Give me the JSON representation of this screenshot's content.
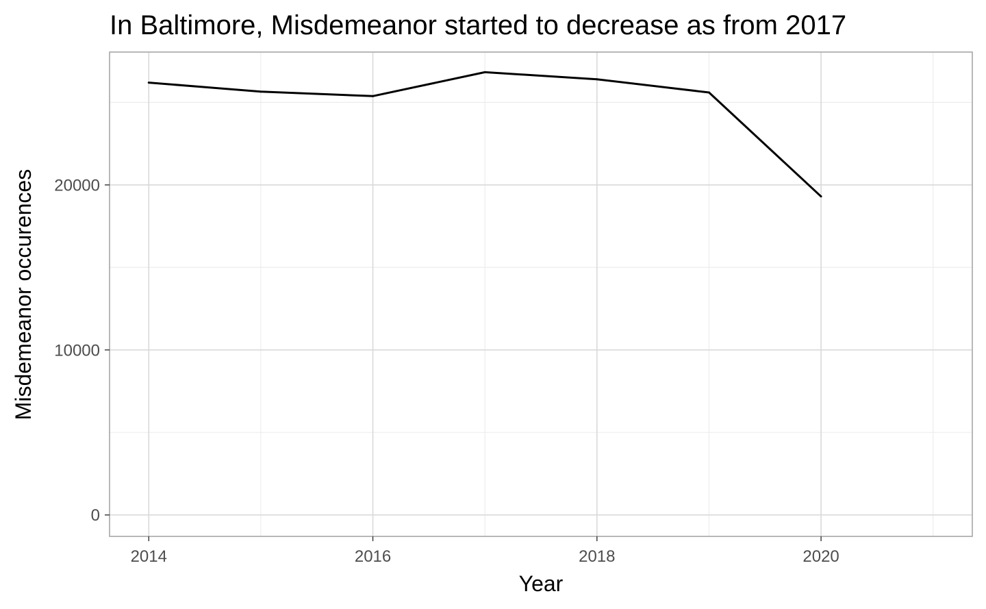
{
  "chart_data": {
    "type": "line",
    "title": "In Baltimore, Misdemeanor started to decrease as from 2017",
    "xlabel": "Year",
    "ylabel": "Misdemeanor occurences",
    "x": [
      2014,
      2015,
      2016,
      2017,
      2018,
      2019,
      2020
    ],
    "series": [
      {
        "values": [
          26200,
          25650,
          25380,
          26830,
          26400,
          25600,
          19300
        ]
      }
    ],
    "xlim": [
      2013.65,
      2021.35
    ],
    "ylim": [
      -1300,
      28050
    ],
    "x_ticks": [
      2014,
      2016,
      2018,
      2020
    ],
    "x_tick_labels": [
      "2014",
      "2016",
      "2018",
      "2020"
    ],
    "x_minor_ticks": [
      2015,
      2017,
      2019,
      2021
    ],
    "y_ticks": [
      0,
      10000,
      20000
    ],
    "y_tick_labels": [
      "0",
      "10000",
      "20000"
    ],
    "y_minor_ticks": [
      5000,
      15000,
      25000
    ],
    "grid": true,
    "legend": "none",
    "colors": {
      "line": "#000000",
      "grid_major": "#d9d9d9",
      "grid_minor": "#ebebeb",
      "border": "#a6a6a6"
    }
  }
}
